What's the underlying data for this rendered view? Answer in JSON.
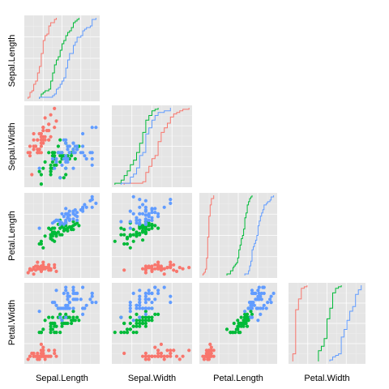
{
  "chart_data": {
    "type": "scatter",
    "layout": "lower-triangular scatterplot matrix with empirical CDF step lines on the diagonal",
    "grid": true,
    "legend": "none",
    "variables": [
      "Sepal.Length",
      "Sepal.Width",
      "Petal.Length",
      "Petal.Width"
    ],
    "xlabels": [
      "Sepal.Length",
      "Sepal.Width",
      "Petal.Length",
      "Petal.Width"
    ],
    "ylabels": [
      "Sepal.Length",
      "Sepal.Width",
      "Petal.Length",
      "Petal.Width"
    ],
    "axis_ranges": {
      "Sepal.Length": [
        4.1,
        8.1
      ],
      "Sepal.Width": [
        1.9,
        4.5
      ],
      "Petal.Length": [
        0.7,
        7.2
      ],
      "Petal.Width": [
        -0.05,
        2.65
      ]
    },
    "colors": [
      "#F8766D",
      "#00BA38",
      "#619CFF"
    ],
    "series": [
      {
        "color": "#F8766D",
        "Sepal.Length": [
          5.1,
          4.9,
          4.7,
          4.6,
          5.0,
          5.4,
          4.6,
          5.0,
          4.4,
          4.9,
          5.4,
          4.8,
          4.8,
          4.3,
          5.8,
          5.7,
          5.4,
          5.1,
          5.7,
          5.1,
          5.4,
          5.1,
          4.6,
          5.1,
          4.8,
          5.0,
          5.0,
          5.2,
          5.2,
          4.7,
          4.8,
          5.4,
          5.2,
          5.5,
          4.9,
          5.0,
          5.5,
          4.9,
          4.4,
          5.1,
          5.0,
          4.5,
          4.4,
          5.0,
          5.1,
          4.8,
          5.1,
          4.6,
          5.3,
          5.0
        ],
        "Sepal.Width": [
          3.5,
          3.0,
          3.2,
          3.1,
          3.6,
          3.9,
          3.4,
          3.4,
          2.9,
          3.1,
          3.7,
          3.4,
          3.0,
          3.0,
          4.0,
          4.4,
          3.9,
          3.5,
          3.8,
          3.8,
          3.4,
          3.7,
          3.6,
          3.3,
          3.4,
          3.0,
          3.4,
          3.5,
          3.4,
          3.2,
          3.1,
          3.4,
          4.1,
          4.2,
          3.1,
          3.2,
          3.5,
          3.6,
          3.0,
          3.4,
          3.5,
          2.3,
          3.2,
          3.5,
          3.8,
          3.0,
          3.8,
          3.2,
          3.7,
          3.3
        ],
        "Petal.Length": [
          1.4,
          1.4,
          1.3,
          1.5,
          1.4,
          1.7,
          1.4,
          1.5,
          1.4,
          1.5,
          1.5,
          1.6,
          1.4,
          1.1,
          1.2,
          1.5,
          1.3,
          1.4,
          1.7,
          1.5,
          1.7,
          1.5,
          1.0,
          1.7,
          1.9,
          1.6,
          1.6,
          1.5,
          1.4,
          1.6,
          1.6,
          1.5,
          1.5,
          1.4,
          1.5,
          1.2,
          1.3,
          1.4,
          1.3,
          1.5,
          1.3,
          1.3,
          1.3,
          1.6,
          1.9,
          1.4,
          1.6,
          1.4,
          1.5,
          1.4
        ],
        "Petal.Width": [
          0.2,
          0.2,
          0.2,
          0.2,
          0.2,
          0.4,
          0.3,
          0.2,
          0.2,
          0.1,
          0.2,
          0.2,
          0.1,
          0.1,
          0.2,
          0.4,
          0.4,
          0.3,
          0.3,
          0.3,
          0.2,
          0.4,
          0.2,
          0.5,
          0.2,
          0.2,
          0.4,
          0.2,
          0.2,
          0.2,
          0.2,
          0.4,
          0.1,
          0.2,
          0.2,
          0.2,
          0.2,
          0.1,
          0.2,
          0.2,
          0.3,
          0.3,
          0.2,
          0.6,
          0.4,
          0.3,
          0.2,
          0.2,
          0.2,
          0.2
        ]
      },
      {
        "color": "#00BA38",
        "Sepal.Length": [
          7.0,
          6.4,
          6.9,
          5.5,
          6.5,
          5.7,
          6.3,
          4.9,
          6.6,
          5.2,
          5.0,
          5.9,
          6.0,
          6.1,
          5.6,
          6.7,
          5.6,
          5.8,
          6.2,
          5.6,
          5.9,
          6.1,
          6.3,
          6.1,
          6.4,
          6.6,
          6.8,
          6.7,
          6.0,
          5.7,
          5.5,
          5.5,
          5.8,
          6.0,
          5.4,
          6.0,
          6.7,
          6.3,
          5.6,
          5.5,
          5.5,
          6.1,
          5.8,
          5.0,
          5.6,
          5.7,
          5.7,
          6.2,
          5.1,
          5.7
        ],
        "Sepal.Width": [
          3.2,
          3.2,
          3.1,
          2.3,
          2.8,
          2.8,
          3.3,
          2.4,
          2.9,
          2.7,
          2.0,
          3.0,
          2.2,
          2.9,
          2.9,
          3.1,
          3.0,
          2.7,
          2.2,
          2.5,
          3.2,
          2.8,
          2.5,
          2.8,
          2.9,
          3.0,
          2.8,
          3.0,
          2.9,
          2.6,
          2.4,
          2.4,
          2.7,
          2.7,
          3.0,
          3.4,
          3.1,
          2.3,
          3.0,
          2.5,
          2.6,
          3.0,
          2.6,
          2.3,
          2.7,
          3.0,
          2.9,
          2.9,
          2.5,
          2.8
        ],
        "Petal.Length": [
          4.7,
          4.5,
          4.9,
          4.0,
          4.6,
          4.5,
          4.7,
          3.3,
          4.6,
          3.9,
          3.5,
          4.2,
          4.0,
          4.7,
          3.6,
          4.4,
          4.5,
          4.1,
          4.5,
          3.9,
          4.8,
          4.0,
          4.9,
          4.7,
          4.3,
          4.4,
          4.8,
          5.0,
          4.5,
          3.5,
          3.8,
          3.7,
          3.9,
          5.1,
          4.5,
          4.5,
          4.7,
          4.4,
          4.1,
          4.0,
          4.4,
          4.6,
          4.0,
          3.3,
          4.2,
          4.2,
          4.2,
          4.3,
          3.0,
          4.1
        ],
        "Petal.Width": [
          1.4,
          1.5,
          1.5,
          1.3,
          1.5,
          1.3,
          1.6,
          1.0,
          1.3,
          1.4,
          1.0,
          1.5,
          1.0,
          1.4,
          1.3,
          1.4,
          1.5,
          1.0,
          1.5,
          1.1,
          1.8,
          1.3,
          1.5,
          1.2,
          1.3,
          1.4,
          1.4,
          1.7,
          1.5,
          1.0,
          1.1,
          1.0,
          1.2,
          1.6,
          1.5,
          1.6,
          1.5,
          1.3,
          1.3,
          1.3,
          1.2,
          1.4,
          1.2,
          1.0,
          1.3,
          1.2,
          1.3,
          1.3,
          1.1,
          1.3
        ]
      },
      {
        "color": "#619CFF",
        "Sepal.Length": [
          6.3,
          5.8,
          7.1,
          6.3,
          6.5,
          7.6,
          4.9,
          7.3,
          6.7,
          7.2,
          6.5,
          6.4,
          6.8,
          5.7,
          5.8,
          6.4,
          6.5,
          7.7,
          7.7,
          6.0,
          6.9,
          5.6,
          7.7,
          6.3,
          6.7,
          7.2,
          6.2,
          6.1,
          6.4,
          7.2,
          7.4,
          7.9,
          6.4,
          6.3,
          6.1,
          7.7,
          6.3,
          6.4,
          6.0,
          6.9,
          6.7,
          6.9,
          5.8,
          6.8,
          6.7,
          6.7,
          6.3,
          6.5,
          6.2,
          5.9
        ],
        "Sepal.Width": [
          3.3,
          2.7,
          3.0,
          2.9,
          3.0,
          3.0,
          2.5,
          2.9,
          2.5,
          3.6,
          3.2,
          2.7,
          3.0,
          2.5,
          2.8,
          3.2,
          3.0,
          3.8,
          2.6,
          2.2,
          3.2,
          2.8,
          2.8,
          2.7,
          3.3,
          3.2,
          2.8,
          3.0,
          2.8,
          3.0,
          2.8,
          3.8,
          2.8,
          2.8,
          2.6,
          3.0,
          3.4,
          3.1,
          3.0,
          3.1,
          3.1,
          3.1,
          2.7,
          3.2,
          3.3,
          3.0,
          2.5,
          3.0,
          3.4,
          3.0
        ],
        "Petal.Length": [
          6.0,
          5.1,
          5.9,
          5.6,
          5.8,
          6.6,
          4.5,
          6.3,
          5.8,
          6.1,
          5.1,
          5.3,
          5.5,
          5.0,
          5.1,
          5.3,
          5.5,
          6.7,
          6.9,
          5.0,
          5.7,
          4.9,
          6.7,
          4.9,
          5.7,
          6.0,
          4.8,
          4.9,
          5.6,
          5.8,
          6.1,
          6.4,
          5.6,
          5.1,
          5.6,
          6.1,
          5.6,
          5.5,
          4.8,
          5.4,
          5.6,
          5.1,
          5.1,
          5.9,
          5.7,
          5.2,
          5.0,
          5.2,
          5.4,
          5.1
        ],
        "Petal.Width": [
          2.5,
          1.9,
          2.1,
          1.8,
          2.2,
          2.1,
          1.7,
          1.8,
          1.8,
          2.5,
          2.0,
          1.9,
          2.1,
          2.0,
          2.4,
          2.3,
          1.8,
          2.2,
          2.3,
          1.5,
          2.3,
          2.0,
          2.0,
          1.8,
          2.1,
          1.8,
          1.8,
          1.8,
          2.1,
          1.6,
          1.9,
          2.0,
          2.2,
          1.5,
          1.4,
          2.3,
          2.4,
          1.8,
          1.8,
          2.1,
          2.4,
          2.3,
          1.9,
          2.3,
          2.5,
          2.3,
          1.9,
          2.0,
          2.3,
          1.8
        ]
      }
    ]
  }
}
